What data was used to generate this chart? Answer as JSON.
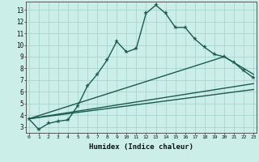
{
  "xlabel": "Humidex (Indice chaleur)",
  "background_color": "#cceee8",
  "grid_color": "#aad4cc",
  "line_color": "#1a5c50",
  "x_ticks": [
    0,
    1,
    2,
    3,
    4,
    5,
    6,
    7,
    8,
    9,
    10,
    11,
    12,
    13,
    14,
    15,
    16,
    17,
    18,
    19,
    20,
    21,
    22,
    23
  ],
  "y_ticks": [
    3,
    4,
    5,
    6,
    7,
    8,
    9,
    10,
    11,
    12,
    13
  ],
  "xlim": [
    -0.3,
    23.3
  ],
  "ylim": [
    2.5,
    13.7
  ],
  "line1_x": [
    0,
    1,
    2,
    3,
    4,
    5,
    6,
    7,
    8,
    9,
    10,
    11,
    12,
    13,
    14,
    15,
    16,
    17,
    18,
    19,
    20,
    21,
    22,
    23
  ],
  "line1_y": [
    3.7,
    2.8,
    3.3,
    3.5,
    3.6,
    4.8,
    6.5,
    7.5,
    8.7,
    10.3,
    9.4,
    9.7,
    12.7,
    13.4,
    12.7,
    11.5,
    11.5,
    10.5,
    9.8,
    9.2,
    9.0,
    8.5,
    7.8,
    7.2
  ],
  "line2_x": [
    0,
    20,
    23
  ],
  "line2_y": [
    3.7,
    9.0,
    7.5
  ],
  "line3_x": [
    0,
    23
  ],
  "line3_y": [
    3.7,
    6.7
  ],
  "line4_x": [
    0,
    23
  ],
  "line4_y": [
    3.7,
    6.2
  ],
  "marker": "*",
  "marker_size": 4,
  "line_width": 1.0
}
